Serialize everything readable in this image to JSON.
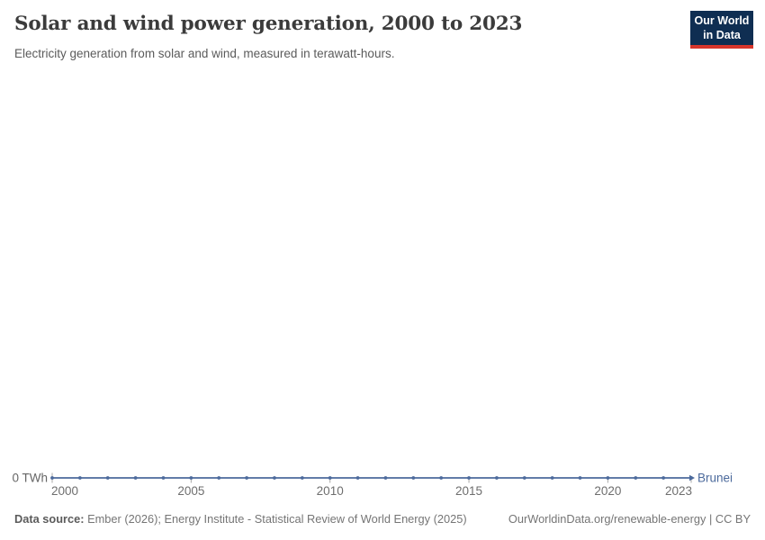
{
  "header": {
    "title": "Solar and wind power generation, 2000 to 2023",
    "subtitle": "Electricity generation from solar and wind, measured in terawatt-hours."
  },
  "logo": {
    "line1": "Our World",
    "line2": "in Data",
    "bg_color": "#0f2e52",
    "bar_color": "#d8352b"
  },
  "footer": {
    "source_label": "Data source:",
    "source_text": "Ember (2026); Energy Institute - Statistical Review of World Energy (2025)",
    "citation": "OurWorldinData.org/renewable-energy | CC BY"
  },
  "chart_data": {
    "type": "line",
    "title": "Solar and wind power generation, 2000 to 2023",
    "subtitle": "Electricity generation from solar and wind, measured in terawatt-hours.",
    "unit": "TWh",
    "x": [
      2000,
      2001,
      2002,
      2003,
      2004,
      2005,
      2006,
      2007,
      2008,
      2009,
      2010,
      2011,
      2012,
      2013,
      2014,
      2015,
      2016,
      2017,
      2018,
      2019,
      2020,
      2021,
      2022,
      2023
    ],
    "series": [
      {
        "name": "Brunei",
        "color": "#4c6a9c",
        "values": [
          0,
          0,
          0,
          0,
          0,
          0,
          0,
          0,
          0,
          0,
          0,
          0,
          0,
          0,
          0,
          0,
          0,
          0,
          0,
          0,
          0,
          0,
          0,
          0
        ]
      }
    ],
    "x_ticks": [
      2000,
      2005,
      2010,
      2015,
      2020,
      2023
    ],
    "y_ticks": [
      {
        "value": 0,
        "label": "0 TWh"
      }
    ],
    "xlim": [
      2000,
      2023
    ],
    "ylim": [
      0,
      0
    ],
    "grid": false,
    "legend": "entity-label-at-line-end",
    "axis_tick_color": "#a8a8a8",
    "axis_label_color": "#6e6e6e"
  }
}
